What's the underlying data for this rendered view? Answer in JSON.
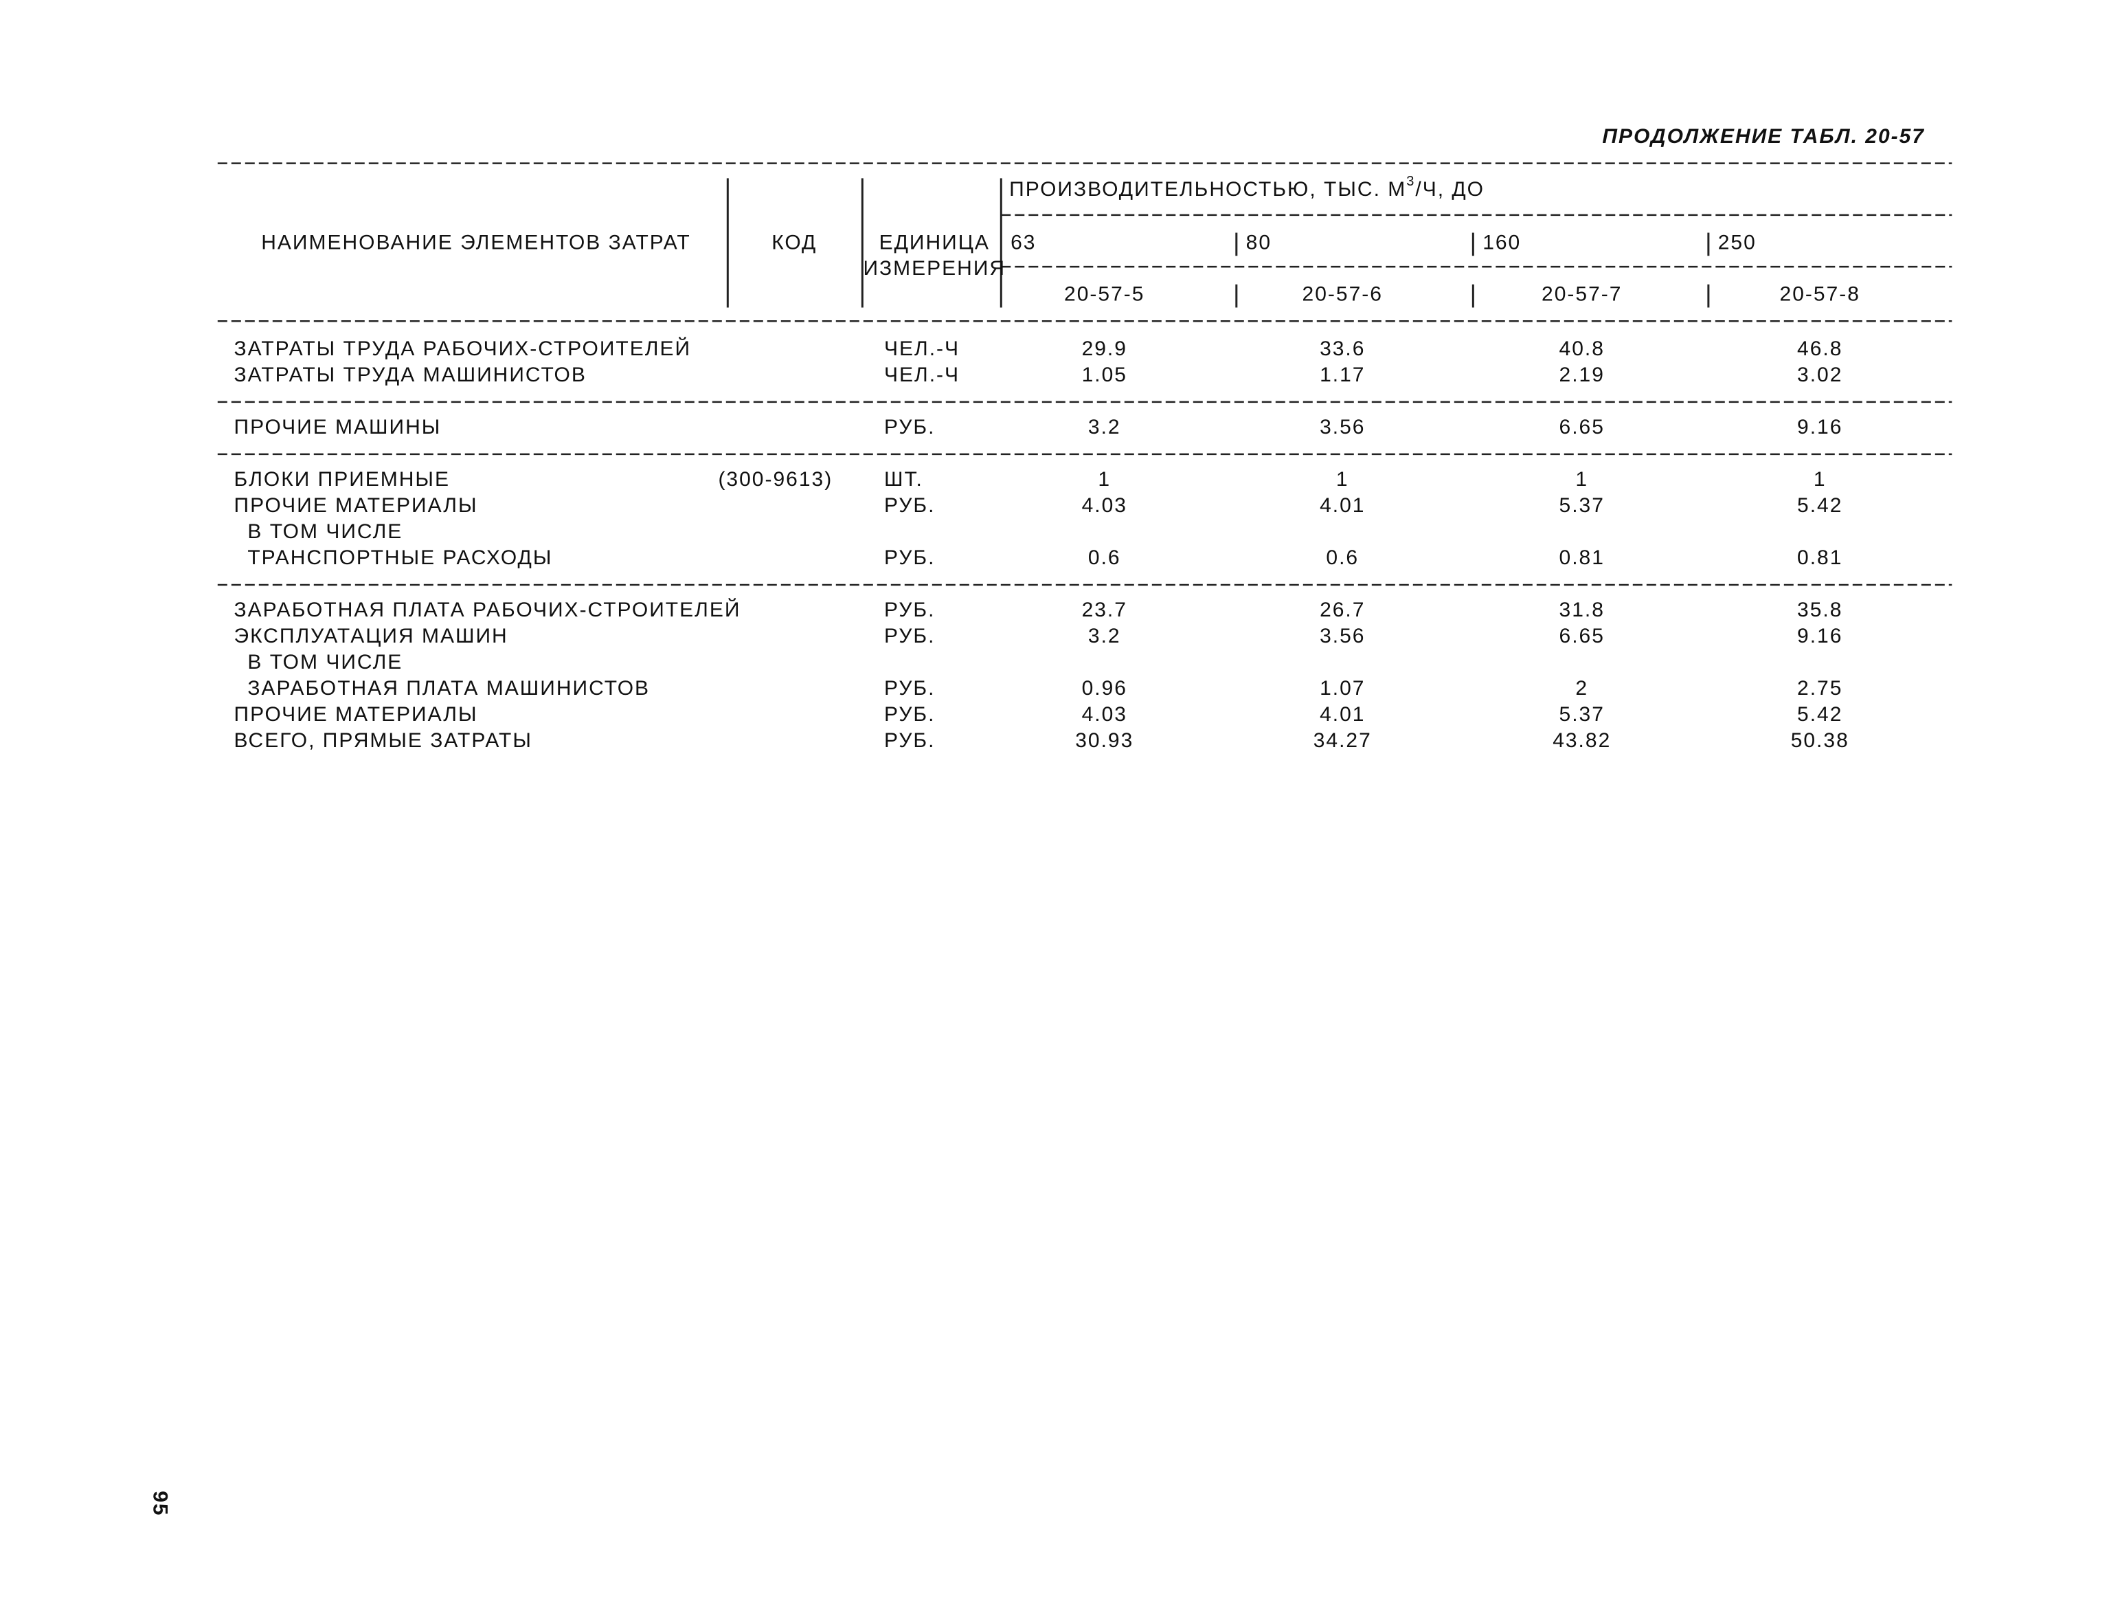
{
  "header": {
    "caption": "ПРОДОЛЖЕНИЕ ТАБЛ. 20-57"
  },
  "table": {
    "head": {
      "name": "НАИМЕНОВАНИЕ ЭЛЕМЕНТОВ ЗАТРАТ",
      "code": "КОД",
      "unit": [
        "ЕДИНИЦА",
        "ИЗМЕРЕНИЯ"
      ],
      "group": [
        "ПРОИЗВОДИТЕЛЬНОСТЬЮ, ТЫС. М",
        "3",
        "/Ч, ДО"
      ],
      "capacities": [
        "63",
        "80",
        "160",
        "250"
      ],
      "codes": [
        "20-57-5",
        "20-57-6",
        "20-57-7",
        "20-57-8"
      ]
    },
    "sections": [
      [
        {
          "name": "ЗАТРАТЫ ТРУДА РАБОЧИХ-СТРОИТЕЛЕЙ",
          "unit": "ЧЕЛ.-Ч",
          "values": [
            "29.9",
            "33.6",
            "40.8",
            "46.8"
          ]
        },
        {
          "name": "ЗАТРАТЫ ТРУДА МАШИНИСТОВ",
          "unit": "ЧЕЛ.-Ч",
          "values": [
            "1.05",
            "1.17",
            "2.19",
            "3.02"
          ]
        }
      ],
      [
        {
          "name": "ПРОЧИЕ МАШИНЫ",
          "unit": "РУБ.",
          "values": [
            "3.2",
            "3.56",
            "6.65",
            "9.16"
          ]
        }
      ],
      [
        {
          "name": "БЛОКИ ПРИЕМНЫЕ",
          "code": "(300-9613)",
          "unit": "ШТ.",
          "values": [
            "1",
            "1",
            "1",
            "1"
          ]
        },
        {
          "name": "ПРОЧИЕ МАТЕРИАЛЫ",
          "unit": "РУБ.",
          "values": [
            "4.03",
            "4.01",
            "5.37",
            "5.42"
          ]
        },
        {
          "name": "В ТОМ ЧИСЛЕ"
        },
        {
          "name": "ТРАНСПОРТНЫЕ РАСХОДЫ",
          "unit": "РУБ.",
          "values": [
            "0.6",
            "0.6",
            "0.81",
            "0.81"
          ]
        }
      ],
      [
        {
          "name": "ЗАРАБОТНАЯ ПЛАТА РАБОЧИХ-СТРОИТЕЛЕЙ",
          "unit": "РУБ.",
          "values": [
            "23.7",
            "26.7",
            "31.8",
            "35.8"
          ]
        },
        {
          "name": "ЭКСПЛУАТАЦИЯ МАШИН",
          "unit": "РУБ.",
          "values": [
            "3.2",
            "3.56",
            "6.65",
            "9.16"
          ]
        },
        {
          "name": "В ТОМ ЧИСЛЕ"
        },
        {
          "name": "ЗАРАБОТНАЯ ПЛАТА МАШИНИСТОВ",
          "unit": "РУБ.",
          "values": [
            "0.96",
            "1.07",
            "2",
            "2.75"
          ]
        },
        {
          "name": "ПРОЧИЕ МАТЕРИАЛЫ",
          "unit": "РУБ.",
          "values": [
            "4.03",
            "4.01",
            "5.37",
            "5.42"
          ]
        },
        {
          "name": "ВСЕГО, ПРЯМЫЕ ЗАТРАТЫ",
          "unit": "РУБ.",
          "values": [
            "30.93",
            "34.27",
            "43.82",
            "50.38"
          ]
        }
      ]
    ]
  },
  "page_number": "95"
}
